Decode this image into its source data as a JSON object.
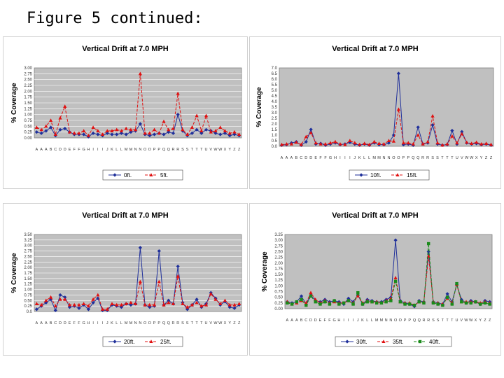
{
  "slide": {
    "title": "Figure 5 continued:"
  },
  "chart_data": [
    {
      "type": "line",
      "title": "Vertical Drift at 7.0 MPH",
      "ylabel": "% Coverage",
      "ylim": [
        0,
        3.0
      ],
      "yticks": [
        "0.00",
        "0.25",
        "0.50",
        "0.75",
        "1.00",
        "1.25",
        "1.50",
        "1.75",
        "2.00",
        "2.25",
        "2.50",
        "2.75",
        "3.00"
      ],
      "grid": true,
      "legend": "bottom",
      "point_count": 44,
      "series": [
        {
          "name": "0ft.",
          "color": "#1f2f9a",
          "marker": "diamond",
          "dash": "",
          "values": [
            0.25,
            0.2,
            0.3,
            0.45,
            0.1,
            0.35,
            0.4,
            0.25,
            0.15,
            0.15,
            0.15,
            0.05,
            0.2,
            0.15,
            0.1,
            0.2,
            0.15,
            0.15,
            0.2,
            0.15,
            0.25,
            0.3,
            0.6,
            0.15,
            0.1,
            0.15,
            0.2,
            0.15,
            0.25,
            0.2,
            1.0,
            0.3,
            0.1,
            0.2,
            0.35,
            0.2,
            0.35,
            0.3,
            0.2,
            0.15,
            0.2,
            0.1,
            0.15,
            0.1
          ]
        },
        {
          "name": "5ft.",
          "color": "#e01010",
          "marker": "triangle",
          "dash": "4,2",
          "values": [
            0.45,
            0.35,
            0.5,
            0.75,
            0.15,
            0.85,
            1.35,
            0.25,
            0.2,
            0.2,
            0.3,
            0.1,
            0.45,
            0.3,
            0.15,
            0.3,
            0.3,
            0.35,
            0.3,
            0.4,
            0.35,
            0.35,
            2.75,
            0.2,
            0.2,
            0.35,
            0.2,
            0.7,
            0.35,
            0.4,
            1.9,
            0.35,
            0.15,
            0.45,
            0.95,
            0.3,
            0.95,
            0.25,
            0.3,
            0.45,
            0.3,
            0.2,
            0.25,
            0.15
          ]
        }
      ]
    },
    {
      "type": "line",
      "title": "Vertical Drift at 7.0 MPH",
      "ylabel": "% Coverage",
      "ylim": [
        0,
        7.0
      ],
      "yticks": [
        "0.0",
        "0.5",
        "1.0",
        "1.5",
        "2.0",
        "2.5",
        "3.0",
        "3.5",
        "4.0",
        "4.5",
        "5.0",
        "5.5",
        "6.0",
        "6.5",
        "7.0"
      ],
      "grid": false,
      "legend": "bottom",
      "point_count": 44,
      "series": [
        {
          "name": "10ft.",
          "color": "#1f2f9a",
          "marker": "diamond",
          "dash": "",
          "values": [
            0.1,
            0.15,
            0.3,
            0.4,
            0.1,
            0.4,
            1.5,
            0.2,
            0.25,
            0.1,
            0.2,
            0.3,
            0.15,
            0.2,
            0.35,
            0.2,
            0.1,
            0.2,
            0.1,
            0.3,
            0.15,
            0.15,
            0.3,
            1.0,
            6.5,
            0.15,
            0.2,
            0.1,
            1.7,
            0.2,
            0.3,
            1.9,
            0.2,
            0.1,
            0.15,
            1.4,
            0.2,
            1.3,
            0.3,
            0.2,
            0.25,
            0.15,
            0.2,
            0.1
          ]
        },
        {
          "name": "15ft.",
          "color": "#e01010",
          "marker": "triangle",
          "dash": "4,2",
          "values": [
            0.15,
            0.2,
            0.2,
            0.35,
            0.15,
            0.85,
            1.2,
            0.3,
            0.2,
            0.2,
            0.3,
            0.4,
            0.2,
            0.15,
            0.5,
            0.3,
            0.15,
            0.25,
            0.15,
            0.4,
            0.25,
            0.2,
            0.5,
            0.45,
            3.3,
            0.3,
            0.3,
            0.2,
            1.0,
            0.2,
            0.4,
            2.7,
            0.3,
            0.1,
            0.2,
            0.9,
            0.3,
            1.1,
            0.35,
            0.25,
            0.35,
            0.2,
            0.25,
            0.15
          ]
        }
      ]
    },
    {
      "type": "line",
      "title": "Vertical Drift at 7.0 MPH",
      "ylabel": "% Coverage",
      "ylim": [
        0,
        3.5
      ],
      "yticks": [
        "0.0",
        "0.25",
        "0.50",
        "0.75",
        "1.00",
        "1.25",
        "1.50",
        "1.75",
        "2.00",
        "2.25",
        "2.50",
        "2.75",
        "3.00",
        "3.25",
        "3.50"
      ],
      "grid": true,
      "legend": "bottom",
      "point_count": 44,
      "series": [
        {
          "name": "20ft.",
          "color": "#1f2f9a",
          "marker": "diamond",
          "dash": "",
          "values": [
            0.1,
            0.25,
            0.4,
            0.55,
            0.05,
            0.75,
            0.65,
            0.2,
            0.25,
            0.15,
            0.3,
            0.1,
            0.4,
            0.6,
            0.05,
            0.05,
            0.3,
            0.25,
            0.2,
            0.35,
            0.3,
            0.35,
            2.9,
            0.3,
            0.2,
            0.25,
            2.75,
            0.3,
            0.5,
            0.35,
            2.05,
            0.4,
            0.1,
            0.3,
            0.55,
            0.2,
            0.35,
            0.85,
            0.6,
            0.3,
            0.45,
            0.2,
            0.15,
            0.3
          ]
        },
        {
          "name": "25ft.",
          "color": "#e01010",
          "marker": "triangle",
          "dash": "4,2",
          "values": [
            0.35,
            0.3,
            0.5,
            0.65,
            0.25,
            0.55,
            0.55,
            0.3,
            0.3,
            0.3,
            0.35,
            0.25,
            0.55,
            0.75,
            0.1,
            0.1,
            0.35,
            0.3,
            0.3,
            0.35,
            0.4,
            0.35,
            1.35,
            0.3,
            0.3,
            0.3,
            1.35,
            0.3,
            0.4,
            0.35,
            1.6,
            0.35,
            0.2,
            0.3,
            0.4,
            0.25,
            0.3,
            0.8,
            0.55,
            0.35,
            0.5,
            0.3,
            0.3,
            0.35
          ]
        }
      ]
    },
    {
      "type": "line",
      "title": "Vertical Drift at 7.0 MPH",
      "ylabel": "% Coverage",
      "ylim": [
        0,
        3.25
      ],
      "yticks": [
        "0.00",
        "0.25",
        "0.50",
        "0.75",
        "1.00",
        "1.25",
        "1.50",
        "1.75",
        "2.00",
        "2.25",
        "2.50",
        "2.75",
        "3.00",
        "3.25"
      ],
      "grid": false,
      "legend": "bottom",
      "point_count": 44,
      "series": [
        {
          "name": "30ft.",
          "color": "#1f2f9a",
          "marker": "diamond",
          "dash": "",
          "values": [
            0.3,
            0.25,
            0.3,
            0.55,
            0.2,
            0.6,
            0.35,
            0.3,
            0.4,
            0.3,
            0.35,
            0.3,
            0.2,
            0.45,
            0.3,
            0.6,
            0.2,
            0.4,
            0.35,
            0.3,
            0.3,
            0.4,
            0.5,
            3.0,
            0.35,
            0.25,
            0.2,
            0.1,
            0.35,
            0.3,
            2.5,
            0.3,
            0.25,
            0.2,
            0.65,
            0.3,
            1.05,
            0.4,
            0.25,
            0.35,
            0.3,
            0.2,
            0.35,
            0.3
          ]
        },
        {
          "name": "35ft.",
          "color": "#e01010",
          "marker": "triangle",
          "dash": "4,2",
          "values": [
            0.3,
            0.2,
            0.25,
            0.35,
            0.25,
            0.7,
            0.4,
            0.25,
            0.35,
            0.25,
            0.3,
            0.25,
            0.25,
            0.35,
            0.25,
            0.55,
            0.25,
            0.35,
            0.3,
            0.3,
            0.25,
            0.35,
            0.45,
            1.35,
            0.3,
            0.25,
            0.25,
            0.15,
            0.3,
            0.3,
            2.3,
            0.3,
            0.25,
            0.2,
            0.45,
            0.25,
            1.05,
            0.3,
            0.3,
            0.3,
            0.3,
            0.25,
            0.3,
            0.25
          ]
        },
        {
          "name": "40ft.",
          "color": "#1a8a1a",
          "marker": "square",
          "dash": "4,2",
          "values": [
            0.25,
            0.2,
            0.3,
            0.4,
            0.15,
            0.55,
            0.3,
            0.2,
            0.3,
            0.2,
            0.35,
            0.2,
            0.25,
            0.35,
            0.2,
            0.7,
            0.2,
            0.3,
            0.3,
            0.25,
            0.25,
            0.3,
            0.35,
            1.2,
            0.3,
            0.2,
            0.2,
            0.15,
            0.3,
            0.25,
            2.85,
            0.25,
            0.2,
            0.15,
            0.5,
            0.2,
            1.1,
            0.3,
            0.25,
            0.25,
            0.3,
            0.2,
            0.25,
            0.2
          ]
        }
      ]
    }
  ]
}
